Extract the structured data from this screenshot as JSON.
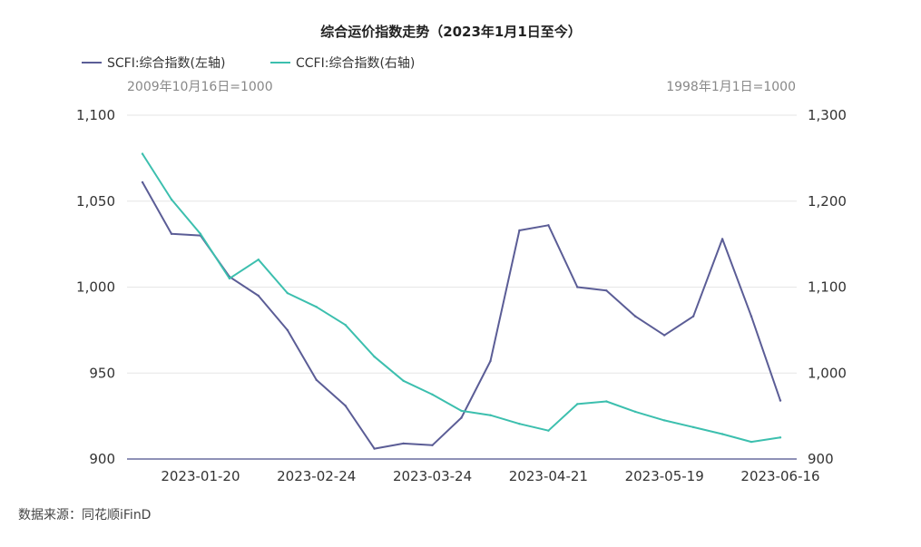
{
  "chart_data": {
    "type": "line",
    "title": "综合运价指数走势（2023年1月1日至今）",
    "source": "数据来源：同花顺iFinD",
    "left_axis_note": "2009年10月16日=1000",
    "right_axis_note": "1998年1月1日=1000",
    "x": [
      "2023-01-06",
      "2023-01-13",
      "2023-01-20",
      "2023-02-03",
      "2023-02-10",
      "2023-02-17",
      "2023-02-24",
      "2023-03-03",
      "2023-03-10",
      "2023-03-17",
      "2023-03-24",
      "2023-03-31",
      "2023-04-07",
      "2023-04-14",
      "2023-04-21",
      "2023-04-28",
      "2023-05-05",
      "2023-05-12",
      "2023-05-19",
      "2023-05-26",
      "2023-06-02",
      "2023-06-09",
      "2023-06-16"
    ],
    "x_tick_labels": [
      "2023-01-20",
      "2023-02-24",
      "2023-03-24",
      "2023-04-21",
      "2023-05-19",
      "2023-06-16"
    ],
    "x_tick_indices": [
      2,
      6,
      10,
      14,
      18,
      22
    ],
    "left_axis": {
      "ylim": [
        900,
        1100
      ],
      "ticks": [
        900,
        950,
        1000,
        1050,
        1100
      ],
      "tick_labels": [
        "900",
        "950",
        "1,000",
        "1,050",
        "1,100"
      ]
    },
    "right_axis": {
      "ylim": [
        900,
        1300
      ],
      "ticks": [
        900,
        1000,
        1100,
        1200,
        1300
      ],
      "tick_labels": [
        "900",
        "1,000",
        "1,100",
        "1,200",
        "1,300"
      ]
    },
    "series": [
      {
        "name": "SCFI:综合指数(左轴)",
        "axis": "left",
        "color": "#5b5d96",
        "values": [
          1061,
          1031,
          1030,
          1006,
          995,
          975,
          946,
          931,
          906,
          909,
          908,
          924,
          957,
          1033,
          1036,
          1000,
          998,
          983,
          972,
          983,
          1028,
          983,
          934
        ]
      },
      {
        "name": "CCFI:综合指数(右轴)",
        "axis": "right",
        "color": "#3cbfae",
        "values": [
          1255,
          1202,
          1162,
          1110,
          1132,
          1093,
          1077,
          1056,
          1019,
          991,
          975,
          956,
          951,
          941,
          933,
          964,
          967,
          955,
          945,
          937,
          929,
          920,
          925
        ]
      }
    ],
    "grid": true,
    "legend_position": "top-left"
  }
}
